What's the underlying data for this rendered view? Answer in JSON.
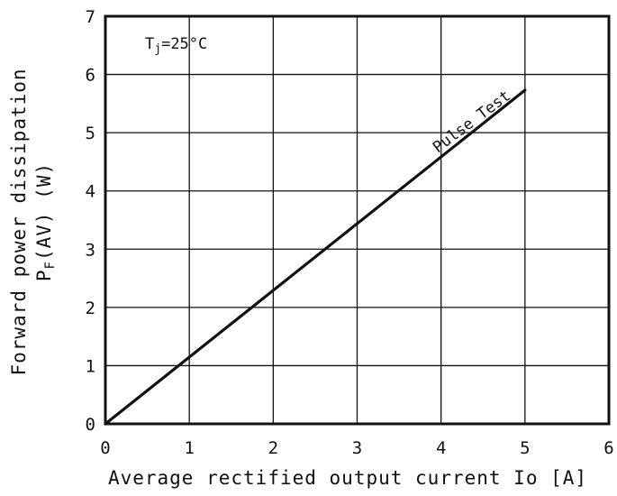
{
  "chart_data": {
    "type": "line",
    "xlabel": "Average rectified output current Io [A]",
    "ylabel_line1": "Forward power dissipation",
    "ylabel_line2_main": "P",
    "ylabel_line2_sub": "F",
    "ylabel_line2_rest": "(AV) (W)",
    "xlim": [
      0,
      6
    ],
    "ylim": [
      0,
      7
    ],
    "xticks": [
      0,
      1,
      2,
      3,
      4,
      5,
      6
    ],
    "yticks": [
      0,
      1,
      2,
      3,
      4,
      5,
      6,
      7
    ],
    "grid": true,
    "condition_main": "T",
    "condition_sub": "j",
    "condition_rest": "=25°C",
    "series": [
      {
        "name": "Pulse Test",
        "x": [
          0,
          5
        ],
        "y": [
          0,
          5.73
        ]
      }
    ]
  },
  "colors": {
    "line": "#111111",
    "grid": "#111111",
    "frame": "#111111",
    "background": "#ffffff"
  }
}
